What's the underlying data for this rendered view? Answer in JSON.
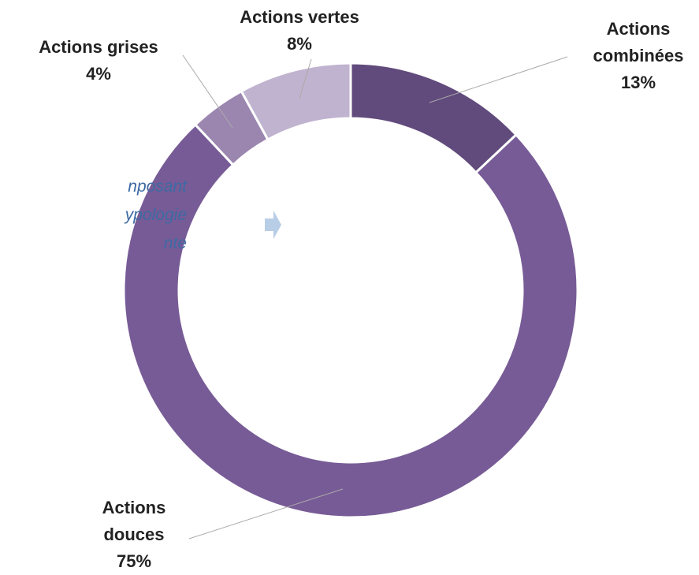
{
  "chart_data": {
    "type": "pie",
    "categories": [
      "Actions combinées",
      "Actions douces",
      "Actions grises",
      "Actions vertes"
    ],
    "values": [
      13,
      75,
      4,
      8
    ],
    "value_labels": [
      "13%",
      "75%",
      "4%",
      "8%"
    ],
    "colors": [
      "#614a7c",
      "#775b96",
      "#9b86b0",
      "#c0b3cf"
    ],
    "annotation": [
      "nposant",
      "ypologie",
      "nte"
    ]
  }
}
